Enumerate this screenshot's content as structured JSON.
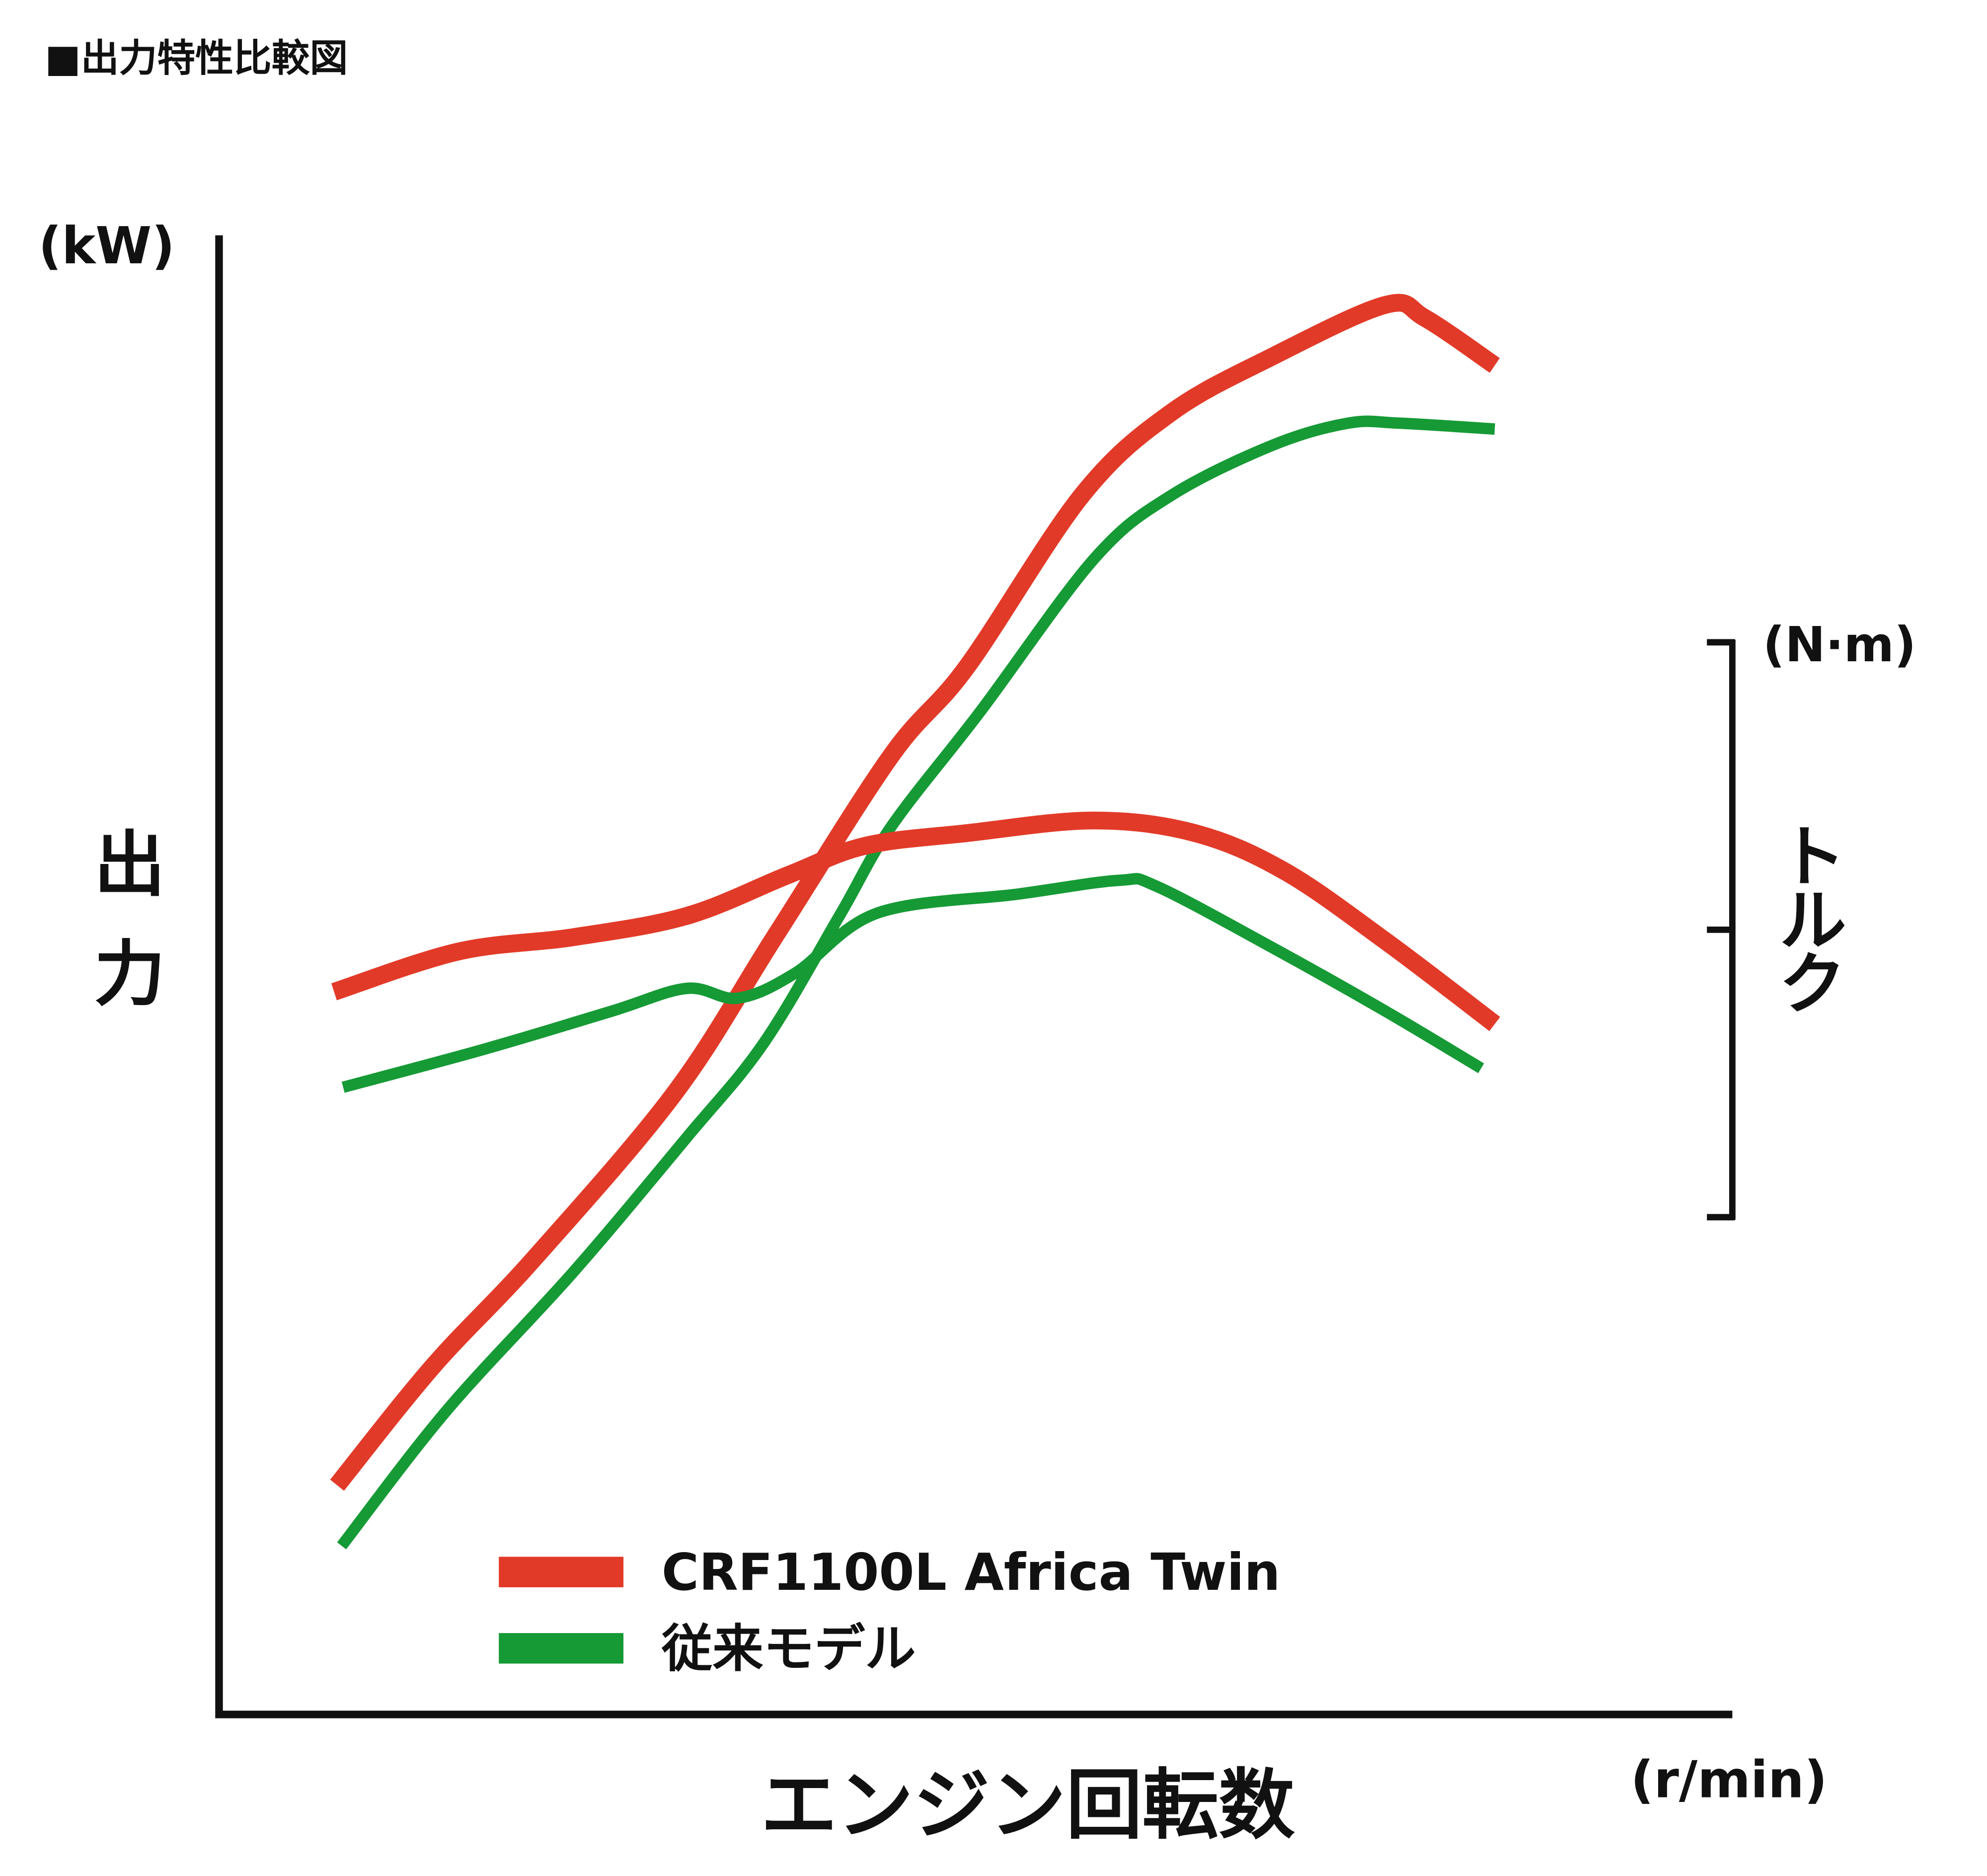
{
  "chart_data": {
    "type": "line",
    "title": "■出力特性比較図",
    "y_unit": "(kW)",
    "y_title": "出力",
    "y2_unit": "(N·m)",
    "y2_title": "トルク",
    "x_title": "エンジン回転数",
    "x_unit": "(r/min)",
    "xlim": [
      0,
      100
    ],
    "ylim": [
      0,
      100
    ],
    "y2lim": [
      0,
      100
    ],
    "y2ticks": [
      0,
      50,
      100
    ],
    "series": [
      {
        "name": "CRF1100L Africa Twin",
        "color": "#e23a28",
        "x": [
          7.8,
          14.1,
          20.8,
          30.1,
          36.8,
          44.4,
          49.4,
          57.0,
          62.9,
          69.6,
          77.1,
          79.7,
          84.3
        ],
        "values": [
          15.5,
          23.5,
          30.8,
          42.0,
          52.7,
          64.8,
          70.8,
          82.4,
          88.0,
          91.8,
          95.3,
          94.4,
          91.2
        ]
      },
      {
        "name": "従来モデル",
        "color": "#169a35",
        "x": [
          8.1,
          15.0,
          23.4,
          30.9,
          36.0,
          41.0,
          44.4,
          50.3,
          57.8,
          62.9,
          69.6,
          74.6,
          78.0,
          84.3
        ],
        "values": [
          11.4,
          20.5,
          29.9,
          39.0,
          45.4,
          54.0,
          60.0,
          67.8,
          78.1,
          82.4,
          85.8,
          87.3,
          87.3,
          86.9
        ]
      },
      {
        "name": "CRF1100L Africa Twin",
        "color": "#e23a28",
        "axis": "y2",
        "x": [
          7.6,
          15.8,
          23.4,
          30.9,
          37.6,
          42.7,
          49.4,
          57.8,
          64.5,
          70.4,
          77.1,
          84.3
        ],
        "values": [
          39.2,
          46.2,
          48.7,
          52.4,
          59.5,
          64.6,
          66.8,
          69.0,
          66.8,
          60.2,
          48.0,
          33.6
        ]
      },
      {
        "name": "従来モデル",
        "color": "#169a35",
        "axis": "y2",
        "x": [
          8.2,
          17.5,
          25.9,
          30.9,
          34.3,
          38.1,
          43.5,
          52.8,
          59.5,
          62.0,
          69.6,
          77.1,
          83.4
        ],
        "values": [
          22.6,
          29.2,
          35.8,
          39.8,
          38.1,
          42.5,
          52.9,
          56.2,
          58.6,
          57.5,
          46.9,
          35.8,
          25.9
        ]
      }
    ]
  }
}
